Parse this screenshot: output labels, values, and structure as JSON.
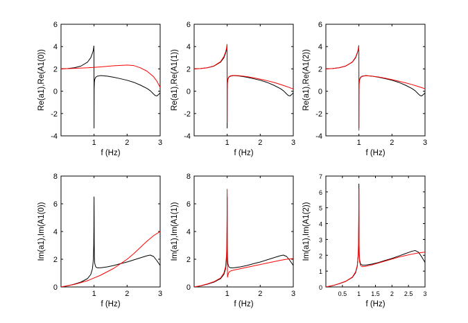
{
  "chart_data": [
    {
      "type": "line",
      "xlabel": "f (Hz)",
      "ylabel": "Re(a1),Re(A1(0))",
      "xlim": [
        0,
        3
      ],
      "ylim": [
        -4,
        6
      ],
      "xticks": [
        1,
        2,
        3
      ],
      "xtick_labels": [
        "1",
        "2",
        "3"
      ],
      "yticks": [
        -4,
        -2,
        0,
        2,
        4,
        6
      ],
      "ytick_labels": [
        "-4",
        "-2",
        "0",
        "2",
        "4",
        "6"
      ],
      "series": [
        {
          "name": "a1",
          "color": "#000000",
          "x": [
            0,
            0.2,
            0.4,
            0.6,
            0.8,
            0.9,
            0.95,
            0.98,
            0.995,
            0.998,
            0.999,
            1.0,
            1.001,
            1.003,
            1.01,
            1.02,
            1.05,
            1.1,
            1.2,
            1.4,
            1.6,
            1.8,
            2.0,
            2.2,
            2.4,
            2.6,
            2.7,
            2.8,
            2.85,
            2.9,
            2.95,
            3.0
          ],
          "y": [
            2.0,
            2.03,
            2.1,
            2.25,
            2.6,
            3.0,
            3.4,
            3.7,
            4.05,
            3.6,
            0.5,
            -3.3,
            -1.5,
            0.2,
            0.8,
            1.05,
            1.25,
            1.35,
            1.4,
            1.35,
            1.25,
            1.12,
            0.98,
            0.8,
            0.55,
            0.25,
            0.05,
            -0.25,
            -0.38,
            -0.42,
            -0.3,
            -0.15
          ]
        },
        {
          "name": "A1(0)",
          "color": "#ff0000",
          "x": [
            0,
            0.4,
            0.8,
            1.2,
            1.6,
            2.0,
            2.2,
            2.4,
            2.6,
            2.8,
            2.9,
            3.0
          ],
          "y": [
            2.0,
            2.05,
            2.1,
            2.18,
            2.28,
            2.34,
            2.3,
            2.1,
            1.8,
            1.3,
            0.9,
            0.35
          ]
        }
      ]
    },
    {
      "type": "line",
      "xlabel": "f (Hz)",
      "ylabel": "Re(a1),Re(A1(1))",
      "xlim": [
        0,
        3
      ],
      "ylim": [
        -4,
        6
      ],
      "xticks": [
        1,
        2,
        3
      ],
      "xtick_labels": [
        "1",
        "2",
        "3"
      ],
      "yticks": [
        -4,
        -2,
        0,
        2,
        4,
        6
      ],
      "ytick_labels": [
        "-4",
        "-2",
        "0",
        "2",
        "4",
        "6"
      ],
      "series": [
        {
          "name": "a1",
          "color": "#000000",
          "x": [
            0,
            0.2,
            0.4,
            0.6,
            0.8,
            0.9,
            0.95,
            0.98,
            0.995,
            0.998,
            0.999,
            1.0,
            1.001,
            1.003,
            1.01,
            1.02,
            1.05,
            1.1,
            1.2,
            1.4,
            1.6,
            1.8,
            2.0,
            2.2,
            2.4,
            2.6,
            2.7,
            2.8,
            2.85,
            2.9,
            2.95,
            3.0
          ],
          "y": [
            2.0,
            2.03,
            2.1,
            2.25,
            2.6,
            3.0,
            3.4,
            3.7,
            4.05,
            3.6,
            0.5,
            -3.3,
            -1.5,
            0.2,
            0.8,
            1.05,
            1.25,
            1.35,
            1.4,
            1.35,
            1.25,
            1.12,
            0.98,
            0.8,
            0.55,
            0.25,
            0.05,
            -0.25,
            -0.38,
            -0.42,
            -0.3,
            -0.15
          ]
        },
        {
          "name": "A1(1)",
          "color": "#ff0000",
          "x": [
            0,
            0.2,
            0.4,
            0.6,
            0.8,
            0.9,
            0.95,
            0.98,
            0.995,
            0.998,
            0.999,
            1.0,
            1.001,
            1.003,
            1.01,
            1.02,
            1.05,
            1.1,
            1.2,
            1.4,
            1.6,
            1.8,
            2.0,
            2.2,
            2.4,
            2.6,
            2.8,
            3.0
          ],
          "y": [
            2.0,
            2.03,
            2.1,
            2.27,
            2.65,
            3.1,
            3.5,
            3.85,
            4.2,
            3.8,
            1.0,
            -2.8,
            -1.2,
            0.3,
            0.85,
            1.1,
            1.28,
            1.38,
            1.42,
            1.38,
            1.3,
            1.2,
            1.08,
            0.95,
            0.8,
            0.62,
            0.42,
            0.2
          ]
        }
      ]
    },
    {
      "type": "line",
      "xlabel": "f (Hz)",
      "ylabel": "Re(a1),Re(A1(2))",
      "xlim": [
        0,
        3
      ],
      "ylim": [
        -4,
        6
      ],
      "xticks": [
        1,
        2,
        3
      ],
      "xtick_labels": [
        "1",
        "2",
        "3"
      ],
      "yticks": [
        -4,
        -2,
        0,
        2,
        4,
        6
      ],
      "ytick_labels": [
        "-4",
        "-2",
        "0",
        "2",
        "4",
        "6"
      ],
      "series": [
        {
          "name": "a1",
          "color": "#000000",
          "x": [
            0,
            0.2,
            0.4,
            0.6,
            0.8,
            0.9,
            0.95,
            0.98,
            0.995,
            0.998,
            0.999,
            1.0,
            1.001,
            1.003,
            1.01,
            1.02,
            1.05,
            1.1,
            1.2,
            1.4,
            1.6,
            1.8,
            2.0,
            2.2,
            2.4,
            2.6,
            2.7,
            2.8,
            2.85,
            2.9,
            2.95,
            3.0
          ],
          "y": [
            2.0,
            2.03,
            2.1,
            2.25,
            2.6,
            3.0,
            3.4,
            3.7,
            4.05,
            3.6,
            0.5,
            -3.3,
            -1.5,
            0.2,
            0.8,
            1.05,
            1.25,
            1.35,
            1.4,
            1.35,
            1.25,
            1.12,
            0.98,
            0.8,
            0.55,
            0.25,
            0.05,
            -0.25,
            -0.38,
            -0.42,
            -0.3,
            -0.15
          ]
        },
        {
          "name": "A1(2)",
          "color": "#ff0000",
          "x": [
            0,
            0.2,
            0.4,
            0.6,
            0.8,
            0.9,
            0.95,
            0.98,
            0.995,
            0.998,
            0.999,
            1.0,
            1.001,
            1.003,
            1.01,
            1.02,
            1.05,
            1.1,
            1.2,
            1.4,
            1.6,
            1.8,
            2.0,
            2.2,
            2.4,
            2.6,
            2.8,
            3.0
          ],
          "y": [
            2.0,
            2.03,
            2.1,
            2.26,
            2.62,
            3.05,
            3.45,
            3.75,
            4.1,
            3.7,
            0.6,
            -3.5,
            -1.6,
            0.15,
            0.75,
            1.0,
            1.22,
            1.33,
            1.39,
            1.35,
            1.27,
            1.16,
            1.04,
            0.9,
            0.76,
            0.6,
            0.42,
            0.22
          ]
        }
      ]
    },
    {
      "type": "line",
      "xlabel": "f (Hz)",
      "ylabel": "Im(a1),Im(A1(0))",
      "xlim": [
        0,
        3
      ],
      "ylim": [
        0,
        8
      ],
      "xticks": [
        1,
        2,
        3
      ],
      "xtick_labels": [
        "1",
        "2",
        "3"
      ],
      "yticks": [
        0,
        2,
        4,
        6,
        8
      ],
      "ytick_labels": [
        "0",
        "2",
        "4",
        "6",
        "8"
      ],
      "series": [
        {
          "name": "a1",
          "color": "#000000",
          "x": [
            0,
            0.2,
            0.4,
            0.6,
            0.8,
            0.9,
            0.95,
            0.98,
            0.99,
            0.995,
            0.998,
            1.0,
            1.002,
            1.005,
            1.01,
            1.02,
            1.05,
            1.1,
            1.2,
            1.4,
            1.6,
            1.8,
            2.0,
            2.2,
            2.4,
            2.6,
            2.7,
            2.8,
            2.9,
            3.0
          ],
          "y": [
            0,
            0.08,
            0.2,
            0.35,
            0.6,
            0.9,
            1.3,
            2.0,
            3.0,
            4.2,
            5.8,
            6.5,
            5.0,
            3.2,
            2.2,
            1.7,
            1.45,
            1.38,
            1.38,
            1.45,
            1.55,
            1.68,
            1.8,
            1.95,
            2.1,
            2.25,
            2.3,
            2.2,
            1.9,
            1.55
          ]
        },
        {
          "name": "A1(0)",
          "color": "#ff0000",
          "x": [
            0,
            0.4,
            0.8,
            1.2,
            1.6,
            2.0,
            2.2,
            2.4,
            2.6,
            2.8,
            3.0
          ],
          "y": [
            0,
            0.18,
            0.45,
            0.85,
            1.35,
            2.0,
            2.4,
            2.85,
            3.3,
            3.7,
            4.0
          ]
        }
      ]
    },
    {
      "type": "line",
      "xlabel": "f (Hz)",
      "ylabel": "Im(a1),Im(A1(1))",
      "xlim": [
        0,
        3
      ],
      "ylim": [
        0,
        8
      ],
      "xticks": [
        1,
        2,
        3
      ],
      "xtick_labels": [
        "1",
        "2",
        "3"
      ],
      "yticks": [
        0,
        2,
        4,
        6,
        8
      ],
      "ytick_labels": [
        "0",
        "2",
        "4",
        "6",
        "8"
      ],
      "series": [
        {
          "name": "a1",
          "color": "#000000",
          "x": [
            0,
            0.2,
            0.4,
            0.6,
            0.8,
            0.9,
            0.95,
            0.98,
            0.99,
            0.995,
            0.998,
            1.0,
            1.002,
            1.005,
            1.01,
            1.02,
            1.05,
            1.1,
            1.2,
            1.4,
            1.6,
            1.8,
            2.0,
            2.2,
            2.4,
            2.6,
            2.7,
            2.8,
            2.9,
            3.0
          ],
          "y": [
            0,
            0.08,
            0.2,
            0.35,
            0.6,
            0.9,
            1.3,
            2.0,
            3.0,
            4.2,
            5.8,
            6.5,
            5.0,
            3.2,
            2.2,
            1.7,
            1.45,
            1.38,
            1.38,
            1.45,
            1.55,
            1.68,
            1.8,
            1.95,
            2.1,
            2.25,
            2.3,
            2.2,
            1.9,
            1.55
          ]
        },
        {
          "name": "A1(1)",
          "color": "#ff0000",
          "x": [
            0,
            0.2,
            0.4,
            0.6,
            0.8,
            0.9,
            0.95,
            0.98,
            0.99,
            0.995,
            0.998,
            1.0,
            1.002,
            1.005,
            1.01,
            1.02,
            1.05,
            1.1,
            1.2,
            1.4,
            1.6,
            1.8,
            2.0,
            2.2,
            2.4,
            2.6,
            2.8,
            3.0
          ],
          "y": [
            0,
            0.09,
            0.22,
            0.38,
            0.65,
            1.0,
            1.45,
            2.3,
            3.5,
            4.8,
            6.5,
            7.05,
            4.0,
            1.5,
            0.7,
            0.85,
            1.05,
            1.15,
            1.22,
            1.32,
            1.42,
            1.52,
            1.62,
            1.72,
            1.82,
            1.92,
            2.0,
            2.05
          ]
        }
      ]
    },
    {
      "type": "line",
      "xlabel": "f (Hz)",
      "ylabel": "Im(a1),Im(A1(2))",
      "xlim": [
        0,
        3
      ],
      "ylim": [
        0,
        7
      ],
      "xticks": [
        0.5,
        1,
        1.5,
        2,
        2.5,
        3
      ],
      "xtick_labels": [
        "0.5",
        "1",
        "1.5",
        "2",
        "2.5",
        "3"
      ],
      "yticks": [
        0,
        1,
        2,
        3,
        4,
        5,
        6,
        7
      ],
      "ytick_labels": [
        "0",
        "1",
        "2",
        "3",
        "4",
        "5",
        "6",
        "7"
      ],
      "series": [
        {
          "name": "a1",
          "color": "#000000",
          "x": [
            0,
            0.2,
            0.4,
            0.6,
            0.8,
            0.9,
            0.95,
            0.98,
            0.99,
            0.995,
            0.998,
            1.0,
            1.002,
            1.005,
            1.01,
            1.02,
            1.05,
            1.1,
            1.2,
            1.4,
            1.6,
            1.8,
            2.0,
            2.2,
            2.4,
            2.6,
            2.7,
            2.8,
            2.9,
            3.0
          ],
          "y": [
            0,
            0.08,
            0.2,
            0.35,
            0.6,
            0.9,
            1.3,
            2.0,
            3.0,
            4.2,
            5.8,
            6.5,
            5.0,
            3.2,
            2.2,
            1.7,
            1.45,
            1.38,
            1.38,
            1.45,
            1.55,
            1.68,
            1.8,
            1.95,
            2.1,
            2.25,
            2.3,
            2.2,
            1.9,
            1.55
          ]
        },
        {
          "name": "A1(2)",
          "color": "#ff0000",
          "x": [
            0,
            0.2,
            0.4,
            0.6,
            0.8,
            0.9,
            0.95,
            0.98,
            0.99,
            0.995,
            0.998,
            1.0,
            1.002,
            1.005,
            1.01,
            1.02,
            1.05,
            1.1,
            1.2,
            1.4,
            1.6,
            1.8,
            2.0,
            2.2,
            2.4,
            2.6,
            2.8,
            3.0
          ],
          "y": [
            0,
            0.08,
            0.21,
            0.36,
            0.62,
            0.95,
            1.35,
            2.1,
            3.1,
            4.3,
            5.7,
            6.2,
            4.7,
            3.0,
            2.05,
            1.6,
            1.35,
            1.28,
            1.3,
            1.4,
            1.52,
            1.64,
            1.76,
            1.88,
            1.98,
            2.07,
            2.15,
            2.2
          ]
        }
      ]
    }
  ]
}
